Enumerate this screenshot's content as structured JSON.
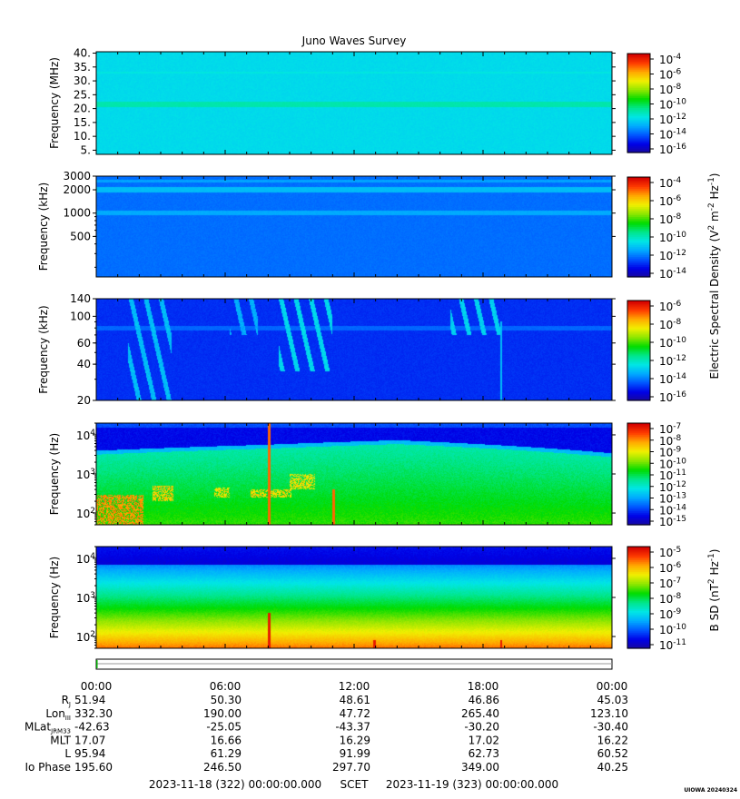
{
  "title": "Juno Waves Survey",
  "colors": {
    "colormap": [
      "#1a0a9a",
      "#0000e6",
      "#0055ff",
      "#00aaff",
      "#00e6e6",
      "#00e68c",
      "#00dc00",
      "#8ce600",
      "#f0f000",
      "#ffaa00",
      "#ff3c00",
      "#d20000"
    ]
  },
  "panels": [
    {
      "ylabel": "Frequency (MHz)",
      "scale": "linear",
      "yrange": [
        3.5,
        40.5
      ],
      "ticks": [
        "5.",
        "10.",
        "15.",
        "20.",
        "25.",
        "30.",
        "35.",
        "40."
      ],
      "tick_values": [
        5,
        10,
        15,
        20,
        25,
        30,
        35,
        40
      ],
      "colorbar_labels": [
        {
          "base": "10",
          "exp": "-4"
        },
        {
          "base": "10",
          "exp": "-6"
        },
        {
          "base": "10",
          "exp": "-8"
        },
        {
          "base": "10",
          "exp": "-10"
        },
        {
          "base": "10",
          "exp": "-12"
        },
        {
          "base": "10",
          "exp": "-14"
        },
        {
          "base": "10",
          "exp": "-16"
        }
      ]
    },
    {
      "ylabel": "Frequency (kHz)",
      "scale": "log",
      "yrange": [
        150,
        3000
      ],
      "ticks": [
        "3000",
        "2000",
        "1000",
        "500"
      ],
      "tick_values": [
        3000,
        2000,
        1000,
        500
      ],
      "colorbar_labels": [
        {
          "base": "10",
          "exp": "-4"
        },
        {
          "base": "10",
          "exp": "-6"
        },
        {
          "base": "10",
          "exp": "-8"
        },
        {
          "base": "10",
          "exp": "-10"
        },
        {
          "base": "10",
          "exp": "-12"
        },
        {
          "base": "10",
          "exp": "-14"
        }
      ]
    },
    {
      "ylabel": "Frequency (kHz)",
      "scale": "log",
      "yrange": [
        20,
        140
      ],
      "ticks": [
        "140",
        "100",
        "60",
        "40",
        "20"
      ],
      "tick_values": [
        140,
        100,
        60,
        40,
        20
      ],
      "colorbar_labels": [
        {
          "base": "10",
          "exp": "-6"
        },
        {
          "base": "10",
          "exp": "-8"
        },
        {
          "base": "10",
          "exp": "-10"
        },
        {
          "base": "10",
          "exp": "-12"
        },
        {
          "base": "10",
          "exp": "-14"
        },
        {
          "base": "10",
          "exp": "-16"
        }
      ]
    },
    {
      "ylabel": "Frequency (Hz)",
      "scale": "log",
      "yrange": [
        50,
        20000
      ],
      "ticks": [
        {
          "base": "10",
          "exp": "4"
        },
        {
          "base": "10",
          "exp": "3"
        },
        {
          "base": "10",
          "exp": "2"
        }
      ],
      "tick_values": [
        10000,
        1000,
        100
      ],
      "colorbar_labels": [
        {
          "base": "10",
          "exp": "-7"
        },
        {
          "base": "10",
          "exp": "-8"
        },
        {
          "base": "10",
          "exp": "-9"
        },
        {
          "base": "10",
          "exp": "-10"
        },
        {
          "base": "10",
          "exp": "-11"
        },
        {
          "base": "10",
          "exp": "-12"
        },
        {
          "base": "10",
          "exp": "-13"
        },
        {
          "base": "10",
          "exp": "-14"
        },
        {
          "base": "10",
          "exp": "-15"
        }
      ]
    },
    {
      "ylabel": "Frequency (Hz)",
      "scale": "log",
      "yrange": [
        50,
        20000
      ],
      "ticks": [
        {
          "base": "10",
          "exp": "4"
        },
        {
          "base": "10",
          "exp": "3"
        },
        {
          "base": "10",
          "exp": "2"
        }
      ],
      "tick_values": [
        10000,
        1000,
        100
      ],
      "colorbar_labels": [
        {
          "base": "10",
          "exp": "-5"
        },
        {
          "base": "10",
          "exp": "-6"
        },
        {
          "base": "10",
          "exp": "-7"
        },
        {
          "base": "10",
          "exp": "-8"
        },
        {
          "base": "10",
          "exp": "-9"
        },
        {
          "base": "10",
          "exp": "-10"
        },
        {
          "base": "10",
          "exp": "-11"
        }
      ]
    }
  ],
  "colorbar_title_e": {
    "pre": "Electric Spectral Density (V",
    "s1": "2",
    "mid": " m",
    "s2": "-2",
    "mid2": " Hz",
    "s3": "-1",
    "post": ")"
  },
  "colorbar_title_b": {
    "pre": "B SD (nT",
    "s1": "2",
    "mid": " Hz",
    "s2": "-1",
    "post": ")"
  },
  "time_ticks": [
    "00:00",
    "06:00",
    "12:00",
    "18:00",
    "00:00"
  ],
  "ephemeris": [
    {
      "label": "R",
      "sub": "J",
      "values": [
        "51.94",
        "50.30",
        "48.61",
        "46.86",
        "45.03"
      ]
    },
    {
      "label": "Lon",
      "sub": "III",
      "values": [
        "332.30",
        "190.00",
        "47.72",
        "265.40",
        "123.10"
      ]
    },
    {
      "label": "MLat",
      "sub": "JRM33",
      "values": [
        "-42.63",
        "-25.05",
        "-43.37",
        "-30.20",
        "-30.40"
      ]
    },
    {
      "label": "MLT",
      "sub": "",
      "values": [
        "17.07",
        "16.66",
        "16.29",
        "17.02",
        "16.22"
      ]
    },
    {
      "label": "L",
      "sub": "",
      "values": [
        "95.94",
        "61.29",
        "91.99",
        "62.73",
        "60.52"
      ]
    },
    {
      "label": "Io Phase",
      "sub": "",
      "values": [
        "195.60",
        "246.50",
        "297.70",
        "349.00",
        "40.25"
      ]
    }
  ],
  "footer": {
    "start": "2023-11-18 (322) 00:00:00.000",
    "scet": "SCET",
    "end": "2023-11-19 (323) 00:00:00.000"
  },
  "stamp": "UIOWA 20240324",
  "chart_data": {
    "type": "heatmap",
    "title": "Juno Waves Survey",
    "x_range": [
      "2023-11-18T00:00",
      "2023-11-19T00:00"
    ],
    "panels": [
      {
        "ylabel": "Frequency (MHz)",
        "scale": "linear",
        "ylim": [
          3.5,
          40.5
        ],
        "zlim_exp": [
          -17,
          -4
        ],
        "background_exp": -12.5,
        "bands": [
          {
            "f": 21.5,
            "half": 0.9,
            "exp": -11.5
          },
          {
            "f": 33,
            "half": 0.3,
            "exp": -12.2
          }
        ],
        "features": []
      },
      {
        "ylabel": "Frequency (kHz)",
        "scale": "log",
        "ylim": [
          150,
          3000
        ],
        "zlim_exp": [
          -15,
          -3
        ],
        "background_exp": -12.5,
        "bands": [
          {
            "f": 2000,
            "half": 0.03,
            "exp": -11.4
          },
          {
            "f": 1000,
            "half": 0.03,
            "exp": -11.7
          },
          {
            "f": 2600,
            "half": 0.02,
            "exp": -11.8
          }
        ],
        "features": []
      },
      {
        "ylabel": "Frequency (kHz)",
        "scale": "log",
        "ylim": [
          20,
          140
        ],
        "zlim_exp": [
          -16,
          -6
        ],
        "background_exp": -14.6,
        "bands": [
          {
            "f": 80,
            "half": 0.02,
            "exp": -14.0
          }
        ],
        "features": [
          {
            "kind": "burst",
            "t": [
              1.5,
              3.5
            ],
            "f": [
              20,
              140
            ],
            "exp": -13.0
          },
          {
            "kind": "burst",
            "t": [
              6.2,
              7.5
            ],
            "f": [
              70,
              140
            ],
            "exp": -13.2
          },
          {
            "kind": "burst",
            "t": [
              8.5,
              11.0
            ],
            "f": [
              35,
              140
            ],
            "exp": -12.6
          },
          {
            "kind": "burst",
            "t": [
              16.5,
              18.8
            ],
            "f": [
              70,
              140
            ],
            "exp": -12.7
          },
          {
            "kind": "line",
            "t": [
              18.8,
              18.9
            ],
            "f": [
              20,
              90
            ],
            "exp": -13.0
          }
        ]
      },
      {
        "ylabel": "Frequency (Hz)",
        "scale": "log",
        "ylim": [
          50,
          20000
        ],
        "zlim_exp": [
          -15,
          -7
        ],
        "background_exp": -11.2,
        "bands": [],
        "features": [
          {
            "kind": "cutoff_blue_above",
            "t0": 0,
            "f0": 3500,
            "t1": 8,
            "f1": 5000,
            "t2": 14,
            "f2": 6500,
            "t3": 24,
            "f3": 3000
          },
          {
            "kind": "intense_low",
            "t": [
              0,
              2.2
            ],
            "f": [
              50,
              300
            ],
            "exp": -8.3
          },
          {
            "kind": "spot",
            "t": [
              2.6,
              3.6
            ],
            "f": [
              200,
              500
            ],
            "exp": -8.8
          },
          {
            "kind": "spot",
            "t": [
              5.5,
              6.2
            ],
            "f": [
              250,
              450
            ],
            "exp": -9.0
          },
          {
            "kind": "spot",
            "t": [
              7.2,
              9.1
            ],
            "f": [
              250,
              400
            ],
            "exp": -8.9
          },
          {
            "kind": "spot",
            "t": [
              9.0,
              10.2
            ],
            "f": [
              400,
              1000
            ],
            "exp": -9.0
          },
          {
            "kind": "line",
            "t": [
              8.0,
              8.1
            ],
            "f": [
              50,
              20000
            ],
            "exp": -8.0
          },
          {
            "kind": "line",
            "t": [
              11.0,
              11.1
            ],
            "f": [
              50,
              400
            ],
            "exp": -8.0
          }
        ]
      },
      {
        "ylabel": "Frequency (Hz)",
        "scale": "log",
        "ylim": [
          50,
          20000
        ],
        "zlim_exp": [
          -11,
          -4
        ],
        "background_exp": null,
        "bands": [],
        "features": [
          {
            "kind": "gradient",
            "low_exp": -4.9,
            "high_exp": -10.2
          },
          {
            "kind": "line",
            "t": [
              8.0,
              8.1
            ],
            "f": [
              50,
              400
            ],
            "exp": -4.3
          },
          {
            "kind": "line",
            "t": [
              12.9,
              13.0
            ],
            "f": [
              50,
              80
            ],
            "exp": -4.3
          },
          {
            "kind": "line",
            "t": [
              18.8,
              18.9
            ],
            "f": [
              50,
              80
            ],
            "exp": -4.3
          }
        ]
      }
    ],
    "ephemeris_times": [
      "00:00",
      "06:00",
      "12:00",
      "18:00",
      "00:00"
    ]
  }
}
